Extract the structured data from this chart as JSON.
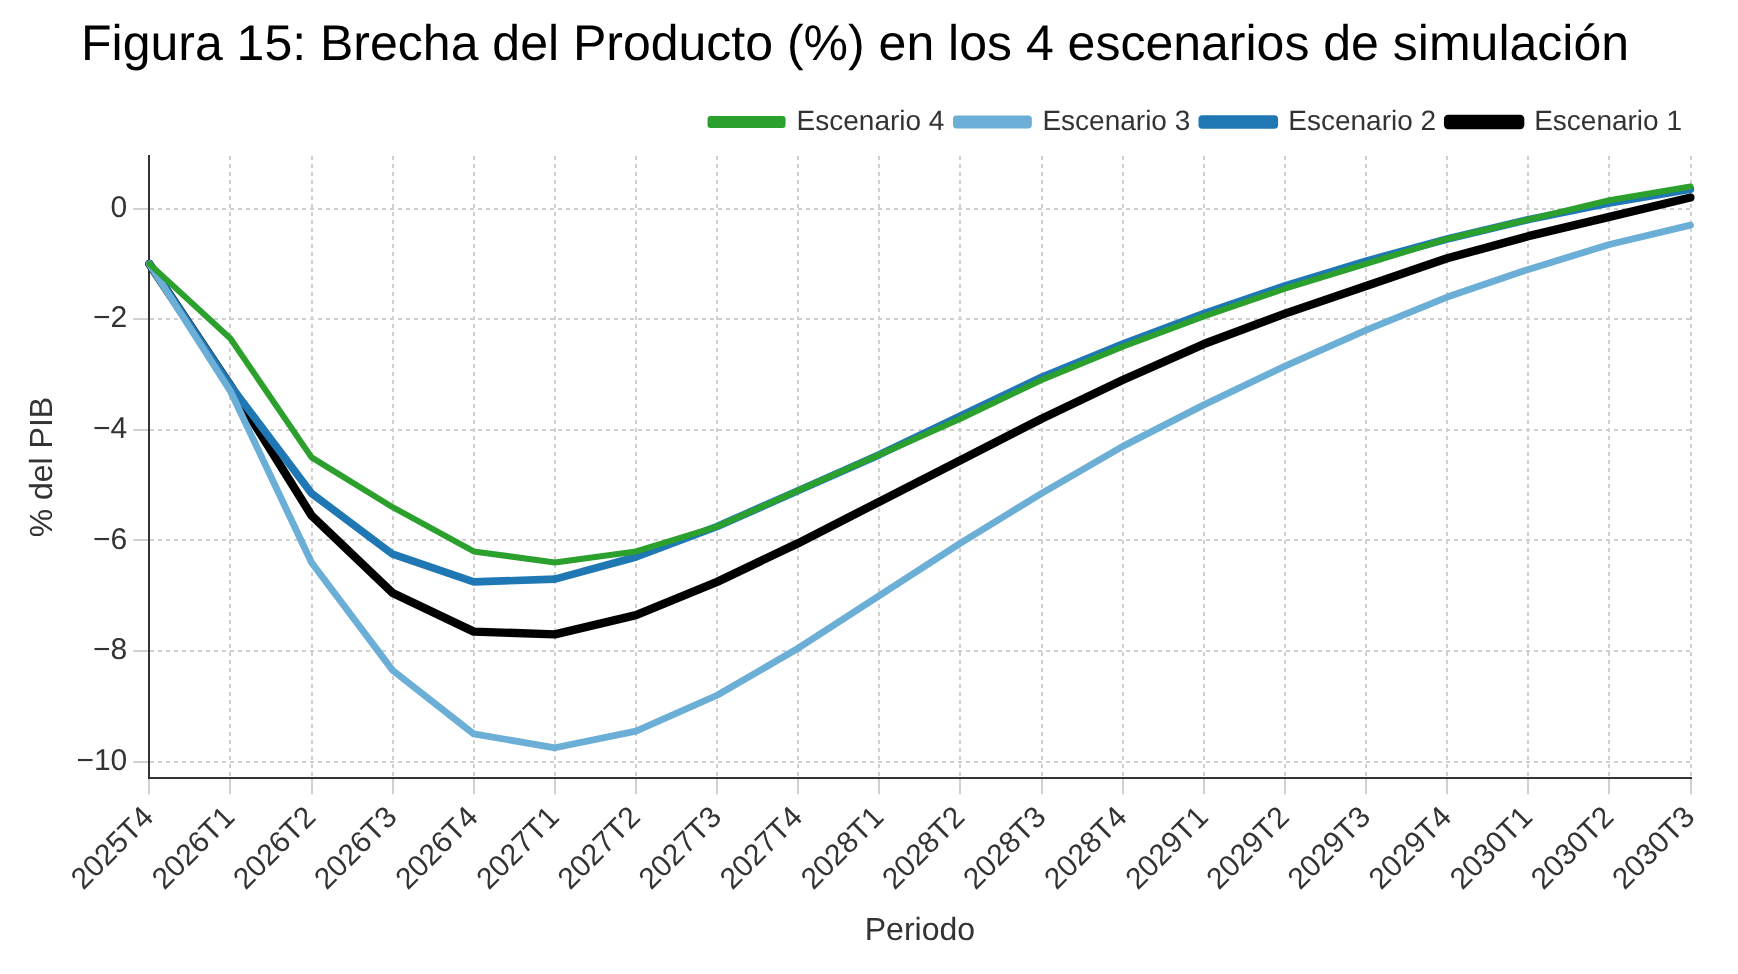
{
  "chart_data": {
    "type": "line",
    "title": "Figura 15: Brecha del Producto (%) en los 4 escenarios de simulación",
    "xlabel": "Periodo",
    "ylabel": "% del PIB",
    "categories": [
      "2025T4",
      "2026T1",
      "2026T2",
      "2026T3",
      "2026T4",
      "2027T1",
      "2027T2",
      "2027T3",
      "2027T4",
      "2028T1",
      "2028T2",
      "2028T3",
      "2028T4",
      "2029T1",
      "2029T2",
      "2029T3",
      "2029T4",
      "2030T1",
      "2030T2",
      "2030T3"
    ],
    "series": [
      {
        "name": "Escenario 1",
        "color": "#000000",
        "values": [
          -1.0,
          -3.2,
          -5.55,
          -6.95,
          -7.65,
          -7.7,
          -7.35,
          -6.75,
          -6.05,
          -5.3,
          -4.55,
          -3.8,
          -3.1,
          -2.45,
          -1.9,
          -1.4,
          -0.9,
          -0.5,
          -0.15,
          0.2
        ]
      },
      {
        "name": "Escenario 2",
        "color": "#1f77b4",
        "values": [
          -1.0,
          -3.2,
          -5.15,
          -6.25,
          -6.75,
          -6.7,
          -6.3,
          -5.75,
          -5.1,
          -4.45,
          -3.75,
          -3.05,
          -2.45,
          -1.9,
          -1.4,
          -0.95,
          -0.55,
          -0.2,
          0.1,
          0.35
        ]
      },
      {
        "name": "Escenario 3",
        "color": "#6baed6",
        "values": [
          -1.0,
          -3.3,
          -6.4,
          -8.35,
          -9.5,
          -9.75,
          -9.45,
          -8.8,
          -7.95,
          -7.0,
          -6.05,
          -5.15,
          -4.3,
          -3.55,
          -2.85,
          -2.2,
          -1.6,
          -1.1,
          -0.65,
          -0.3
        ]
      },
      {
        "name": "Escenario 4",
        "color": "#2ca02c",
        "values": [
          -1.0,
          -2.35,
          -4.5,
          -5.4,
          -6.2,
          -6.4,
          -6.2,
          -5.75,
          -5.1,
          -4.45,
          -3.8,
          -3.1,
          -2.5,
          -1.95,
          -1.45,
          -1.0,
          -0.55,
          -0.2,
          0.15,
          0.4
        ]
      }
    ],
    "ylim": [
      -10.3,
      0.95
    ],
    "yticks": [
      -10,
      -8,
      -6,
      -4,
      -2,
      0
    ],
    "grid": true,
    "legend": "top right",
    "marker": "none",
    "line_style": "solid"
  }
}
